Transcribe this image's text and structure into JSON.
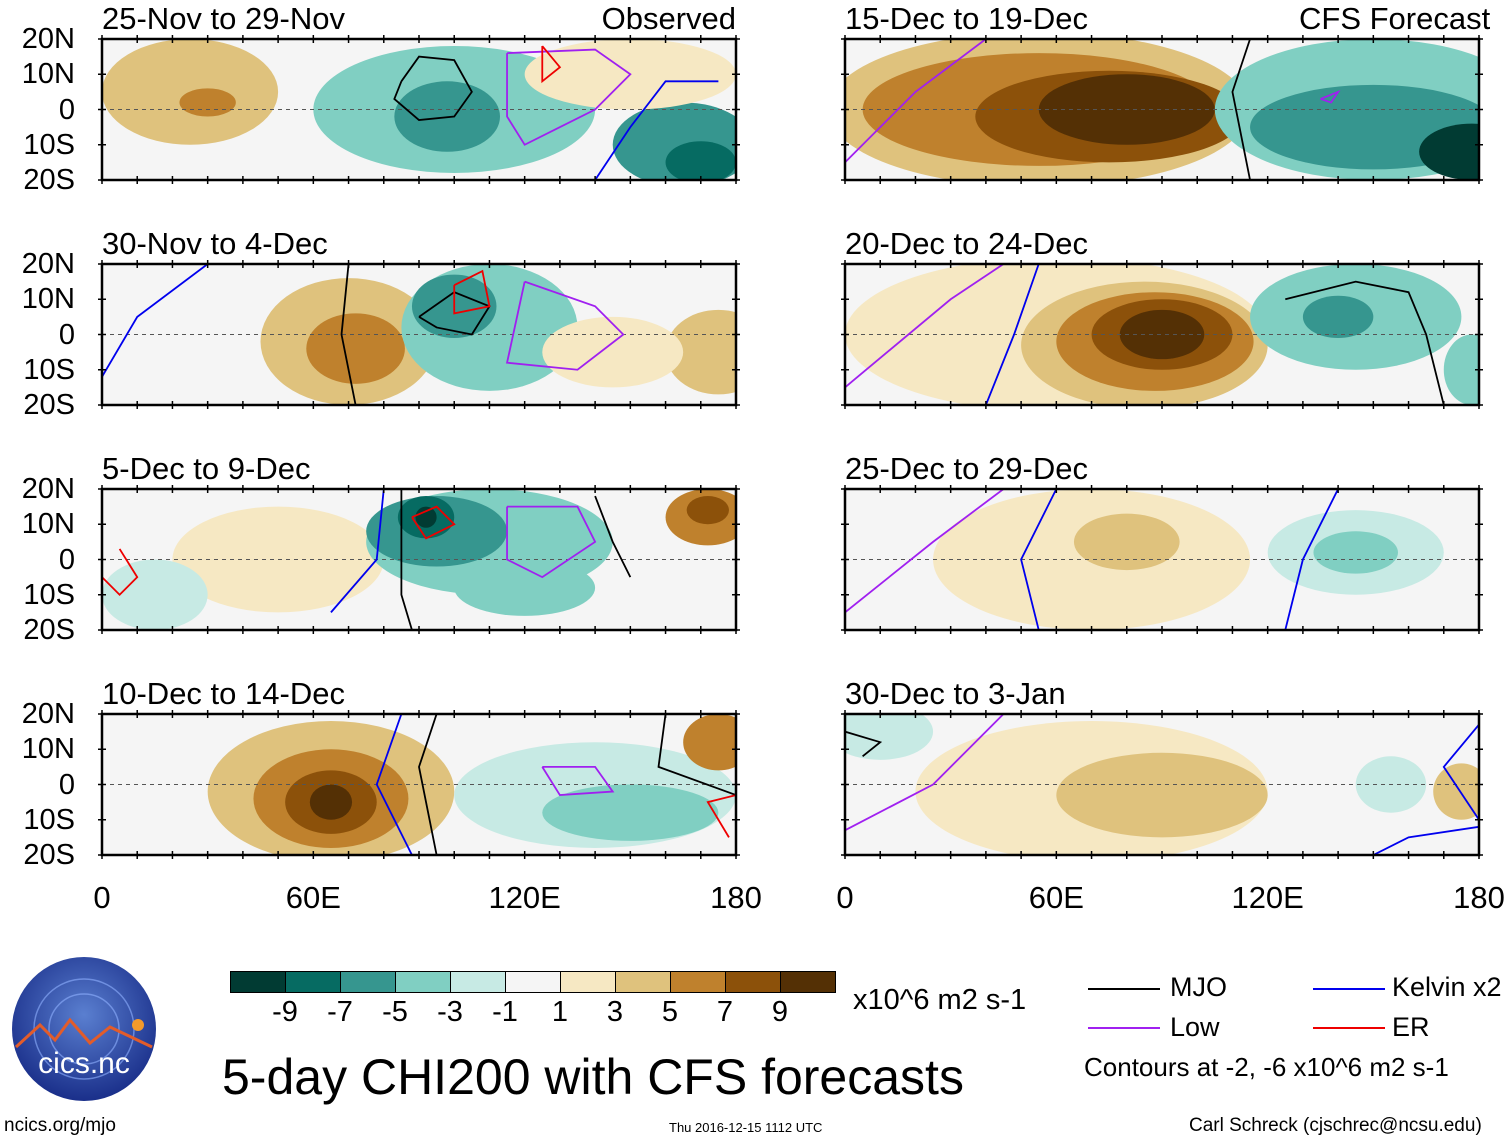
{
  "columns": [
    {
      "tag": "Observed"
    },
    {
      "tag": "CFS Forecast"
    }
  ],
  "lat_labels": [
    "20N",
    "10N",
    "0",
    "10S",
    "20S"
  ],
  "lon_labels": [
    "0",
    "60E",
    "120E",
    "180"
  ],
  "colors": [
    "#013b33",
    "#066b62",
    "#36968f",
    "#80cfc2",
    "#c7eae4",
    "#f5f5f5",
    "#f6e8c3",
    "#dfc27d",
    "#bf812d",
    "#8c510a",
    "#543005"
  ],
  "colorbar": {
    "ticks": [
      "-9",
      "-7",
      "-5",
      "-3",
      "-1",
      "1",
      "3",
      "5",
      "7",
      "9"
    ],
    "units": "x10^6 m2 s-1"
  },
  "title": "5-day CHI200 with CFS forecasts",
  "legend": {
    "mjo": "MJO",
    "kelvin": "Kelvin x2",
    "low": "Low",
    "er": "ER",
    "contours": "Contours at -2, -6 x10^6 m2 s-1",
    "line_colors": {
      "mjo": "#000000",
      "kelvin": "#0000ee",
      "low": "#a020f0",
      "er": "#ee0000"
    }
  },
  "footer": {
    "left": "ncics.org/mjo",
    "center": "Thu 2016-12-15 1112 UTC",
    "right": "Carl Schreck (cjschrec@ncsu.edu)"
  },
  "logo": {
    "text": "cics.nc",
    "ring": "Cooperative Institute for Climate and Satellites"
  },
  "panels": [
    {
      "title": "25-Nov to 29-Nov",
      "col": 0,
      "row": 0,
      "blobs": [
        [
          25,
          5,
          25,
          15,
          4
        ],
        [
          30,
          2,
          8,
          4,
          6
        ],
        [
          100,
          0,
          40,
          18,
          -4
        ],
        [
          98,
          -2,
          15,
          10,
          -6
        ],
        [
          165,
          -10,
          20,
          12,
          -6
        ],
        [
          170,
          -15,
          10,
          6,
          -8
        ],
        [
          150,
          10,
          30,
          10,
          2
        ]
      ],
      "lines": [
        {
          "c": "mjo",
          "p": [
            [
              85,
              8
            ],
            [
              90,
              15
            ],
            [
              100,
              14
            ],
            [
              105,
              5
            ],
            [
              100,
              -2
            ],
            [
              90,
              -3
            ],
            [
              83,
              3
            ],
            [
              85,
              8
            ]
          ]
        },
        {
          "c": "low",
          "p": [
            [
              115,
              16
            ],
            [
              140,
              17
            ],
            [
              150,
              10
            ],
            [
              140,
              0
            ],
            [
              120,
              -10
            ],
            [
              115,
              -2
            ],
            [
              115,
              16
            ]
          ]
        },
        {
          "c": "kelvin",
          "p": [
            [
              175,
              8
            ],
            [
              160,
              8
            ],
            [
              150,
              -5
            ],
            [
              140,
              -20
            ]
          ]
        },
        {
          "c": "er",
          "p": [
            [
              125,
              18
            ],
            [
              130,
              12
            ],
            [
              125,
              8
            ],
            [
              125,
              18
            ]
          ]
        }
      ]
    },
    {
      "title": "30-Nov to 4-Dec",
      "col": 0,
      "row": 1,
      "blobs": [
        [
          70,
          -2,
          25,
          18,
          4
        ],
        [
          72,
          -4,
          14,
          10,
          6
        ],
        [
          110,
          2,
          25,
          18,
          -4
        ],
        [
          100,
          8,
          12,
          9,
          -6
        ],
        [
          175,
          -5,
          15,
          12,
          4
        ],
        [
          145,
          -5,
          20,
          10,
          2
        ]
      ],
      "lines": [
        {
          "c": "mjo",
          "p": [
            [
              70,
              20
            ],
            [
              68,
              0
            ],
            [
              72,
              -20
            ]
          ]
        },
        {
          "c": "mjo",
          "p": [
            [
              90,
              5
            ],
            [
              100,
              12
            ],
            [
              110,
              8
            ],
            [
              105,
              0
            ],
            [
              95,
              2
            ],
            [
              90,
              5
            ]
          ]
        },
        {
          "c": "low",
          "p": [
            [
              120,
              15
            ],
            [
              140,
              8
            ],
            [
              148,
              0
            ],
            [
              135,
              -10
            ],
            [
              115,
              -8
            ],
            [
              120,
              15
            ]
          ]
        },
        {
          "c": "kelvin",
          "p": [
            [
              0,
              -12
            ],
            [
              10,
              5
            ],
            [
              30,
              20
            ]
          ]
        },
        {
          "c": "er",
          "p": [
            [
              100,
              14
            ],
            [
              108,
              18
            ],
            [
              110,
              8
            ],
            [
              100,
              6
            ],
            [
              100,
              14
            ]
          ]
        }
      ]
    },
    {
      "title": "5-Dec to 9-Dec",
      "col": 0,
      "row": 2,
      "blobs": [
        [
          50,
          0,
          30,
          15,
          2
        ],
        [
          110,
          5,
          35,
          15,
          -4
        ],
        [
          95,
          8,
          20,
          10,
          -6
        ],
        [
          92,
          12,
          8,
          6,
          -8
        ],
        [
          92,
          12,
          3,
          3,
          -10
        ],
        [
          120,
          -8,
          20,
          8,
          -4
        ],
        [
          172,
          12,
          12,
          8,
          6
        ],
        [
          172,
          14,
          6,
          4,
          8
        ],
        [
          15,
          -10,
          15,
          10,
          -2
        ]
      ],
      "lines": [
        {
          "c": "mjo",
          "p": [
            [
              85,
              20
            ],
            [
              85,
              -10
            ],
            [
              88,
              -20
            ]
          ]
        },
        {
          "c": "mjo",
          "p": [
            [
              140,
              18
            ],
            [
              145,
              5
            ],
            [
              150,
              -5
            ]
          ]
        },
        {
          "c": "low",
          "p": [
            [
              115,
              15
            ],
            [
              135,
              15
            ],
            [
              140,
              5
            ],
            [
              125,
              -5
            ],
            [
              115,
              0
            ],
            [
              115,
              15
            ]
          ]
        },
        {
          "c": "er",
          "p": [
            [
              88,
              12
            ],
            [
              95,
              15
            ],
            [
              100,
              10
            ],
            [
              92,
              6
            ],
            [
              88,
              12
            ]
          ]
        },
        {
          "c": "er",
          "p": [
            [
              5,
              3
            ],
            [
              10,
              -5
            ],
            [
              5,
              -10
            ],
            [
              0,
              -5
            ]
          ]
        },
        {
          "c": "kelvin",
          "p": [
            [
              80,
              20
            ],
            [
              78,
              0
            ],
            [
              65,
              -15
            ]
          ]
        }
      ]
    },
    {
      "title": "10-Dec to 14-Dec",
      "col": 0,
      "row": 3,
      "blobs": [
        [
          65,
          -2,
          35,
          20,
          4
        ],
        [
          65,
          -4,
          22,
          14,
          6
        ],
        [
          65,
          -5,
          13,
          9,
          8
        ],
        [
          65,
          -5,
          6,
          5,
          10
        ],
        [
          140,
          -3,
          40,
          15,
          -2
        ],
        [
          150,
          -8,
          25,
          8,
          -4
        ],
        [
          175,
          12,
          10,
          8,
          6
        ]
      ],
      "lines": [
        {
          "c": "mjo",
          "p": [
            [
              95,
              20
            ],
            [
              90,
              5
            ],
            [
              95,
              -20
            ]
          ]
        },
        {
          "c": "mjo",
          "p": [
            [
              160,
              20
            ],
            [
              158,
              5
            ],
            [
              180,
              -3
            ]
          ]
        },
        {
          "c": "low",
          "p": [
            [
              125,
              5
            ],
            [
              140,
              5
            ],
            [
              145,
              -2
            ],
            [
              130,
              -3
            ],
            [
              125,
              5
            ]
          ]
        },
        {
          "c": "kelvin",
          "p": [
            [
              85,
              20
            ],
            [
              78,
              0
            ],
            [
              88,
              -20
            ]
          ]
        },
        {
          "c": "er",
          "p": [
            [
              180,
              -3
            ],
            [
              172,
              -5
            ],
            [
              178,
              -15
            ]
          ]
        }
      ]
    },
    {
      "title": "15-Dec to 19-Dec",
      "col": 1,
      "row": 0,
      "blobs": [
        [
          55,
          0,
          60,
          22,
          4
        ],
        [
          55,
          0,
          50,
          16,
          6
        ],
        [
          75,
          -2,
          38,
          13,
          8
        ],
        [
          80,
          0,
          25,
          10,
          10
        ],
        [
          150,
          0,
          45,
          20,
          -4
        ],
        [
          150,
          -5,
          35,
          12,
          -6
        ],
        [
          178,
          -12,
          15,
          8,
          -10
        ]
      ],
      "lines": [
        {
          "c": "mjo",
          "p": [
            [
              115,
              20
            ],
            [
              110,
              5
            ],
            [
              115,
              -20
            ]
          ]
        },
        {
          "c": "low",
          "p": [
            [
              0,
              -15
            ],
            [
              20,
              5
            ],
            [
              40,
              20
            ]
          ]
        },
        {
          "c": "low",
          "p": [
            [
              135,
              3
            ],
            [
              140,
              5
            ],
            [
              138,
              2
            ],
            [
              135,
              3
            ]
          ]
        }
      ]
    },
    {
      "title": "20-Dec to 24-Dec",
      "col": 1,
      "row": 1,
      "blobs": [
        [
          60,
          0,
          60,
          22,
          2
        ],
        [
          85,
          -3,
          35,
          18,
          4
        ],
        [
          88,
          -2,
          28,
          14,
          6
        ],
        [
          90,
          0,
          20,
          10,
          8
        ],
        [
          90,
          0,
          12,
          7,
          10
        ],
        [
          145,
          5,
          30,
          15,
          -4
        ],
        [
          140,
          5,
          10,
          6,
          -6
        ],
        [
          178,
          -10,
          8,
          10,
          -4
        ]
      ],
      "lines": [
        {
          "c": "mjo",
          "p": [
            [
              125,
              10
            ],
            [
              145,
              15
            ],
            [
              160,
              12
            ],
            [
              165,
              0
            ],
            [
              170,
              -20
            ]
          ]
        },
        {
          "c": "kelvin",
          "p": [
            [
              55,
              20
            ],
            [
              48,
              0
            ],
            [
              40,
              -20
            ]
          ]
        },
        {
          "c": "low",
          "p": [
            [
              0,
              -15
            ],
            [
              30,
              10
            ],
            [
              45,
              20
            ]
          ]
        }
      ]
    },
    {
      "title": "25-Dec to 29-Dec",
      "col": 1,
      "row": 2,
      "blobs": [
        [
          70,
          0,
          45,
          20,
          2
        ],
        [
          80,
          5,
          15,
          8,
          4
        ],
        [
          145,
          2,
          25,
          12,
          -2
        ],
        [
          145,
          2,
          12,
          6,
          -4
        ]
      ],
      "lines": [
        {
          "c": "kelvin",
          "p": [
            [
              60,
              20
            ],
            [
              50,
              0
            ],
            [
              55,
              -20
            ]
          ]
        },
        {
          "c": "kelvin",
          "p": [
            [
              140,
              20
            ],
            [
              130,
              0
            ],
            [
              125,
              -20
            ]
          ]
        },
        {
          "c": "low",
          "p": [
            [
              0,
              -15
            ],
            [
              25,
              5
            ],
            [
              45,
              20
            ]
          ]
        }
      ]
    },
    {
      "title": "30-Dec to 3-Jan",
      "col": 1,
      "row": 3,
      "blobs": [
        [
          70,
          -2,
          50,
          20,
          2
        ],
        [
          90,
          -3,
          30,
          12,
          4
        ],
        [
          10,
          15,
          15,
          8,
          -2
        ],
        [
          155,
          0,
          10,
          8,
          -2
        ],
        [
          175,
          -2,
          8,
          8,
          4
        ]
      ],
      "lines": [
        {
          "c": "kelvin",
          "p": [
            [
              180,
              17
            ],
            [
              170,
              5
            ],
            [
              180,
              -10
            ]
          ]
        },
        {
          "c": "kelvin",
          "p": [
            [
              150,
              -20
            ],
            [
              160,
              -15
            ],
            [
              180,
              -12
            ]
          ]
        },
        {
          "c": "low",
          "p": [
            [
              0,
              -13
            ],
            [
              25,
              0
            ],
            [
              45,
              20
            ]
          ]
        },
        {
          "c": "mjo",
          "p": [
            [
              0,
              15
            ],
            [
              10,
              12
            ],
            [
              5,
              8
            ]
          ]
        }
      ]
    }
  ]
}
